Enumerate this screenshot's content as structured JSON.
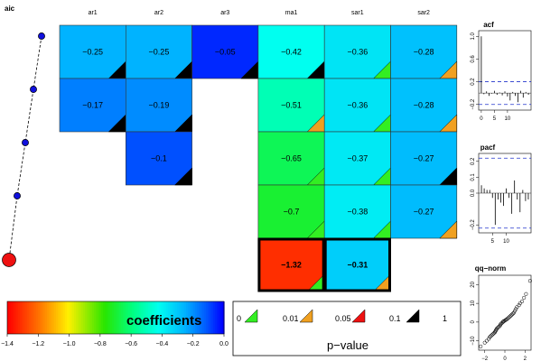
{
  "chart_data": [
    {
      "type": "heatmap",
      "title": "",
      "columns": [
        "ar1",
        "ar2",
        "ar3",
        "ma1",
        "sar1",
        "sar2"
      ],
      "rows": [
        {
          "cells": [
            {
              "col": "ar1",
              "value": -0.25,
              "pvalue_class": "1",
              "label": "−0.25"
            },
            {
              "col": "ar2",
              "value": -0.25,
              "pvalue_class": "1",
              "label": "−0.25"
            },
            {
              "col": "ar3",
              "value": -0.05,
              "pvalue_class": "1",
              "label": "−0.05"
            },
            {
              "col": "ma1",
              "value": -0.42,
              "pvalue_class": "1",
              "label": "−0.42"
            },
            {
              "col": "sar1",
              "value": -0.36,
              "pvalue_class": "0.01",
              "label": "−0.36"
            },
            {
              "col": "sar2",
              "value": -0.28,
              "pvalue_class": "0.05",
              "label": "−0.28"
            }
          ]
        },
        {
          "cells": [
            {
              "col": "ar1",
              "value": -0.17,
              "pvalue_class": "1",
              "label": "−0.17"
            },
            {
              "col": "ar2",
              "value": -0.19,
              "pvalue_class": "1",
              "label": "−0.19"
            },
            {
              "col": "ma1",
              "value": -0.51,
              "pvalue_class": "0.05",
              "label": "−0.51"
            },
            {
              "col": "sar1",
              "value": -0.36,
              "pvalue_class": "0.01",
              "label": "−0.36"
            },
            {
              "col": "sar2",
              "value": -0.28,
              "pvalue_class": "0.05",
              "label": "−0.28"
            }
          ]
        },
        {
          "cells": [
            {
              "col": "ar2",
              "value": -0.1,
              "pvalue_class": "1",
              "label": "−0.1"
            },
            {
              "col": "ma1",
              "value": -0.65,
              "pvalue_class": "0.01",
              "label": "−0.65"
            },
            {
              "col": "sar1",
              "value": -0.37,
              "pvalue_class": "0.01",
              "label": "−0.37"
            },
            {
              "col": "sar2",
              "value": -0.27,
              "pvalue_class": "1",
              "label": "−0.27"
            }
          ]
        },
        {
          "cells": [
            {
              "col": "ma1",
              "value": -0.7,
              "pvalue_class": "0.01",
              "label": "−0.7"
            },
            {
              "col": "sar1",
              "value": -0.38,
              "pvalue_class": "0.01",
              "label": "−0.38"
            },
            {
              "col": "sar2",
              "value": -0.27,
              "pvalue_class": "0.05",
              "label": "−0.27"
            }
          ]
        },
        {
          "cells": [
            {
              "col": "ma1",
              "value": -1.32,
              "pvalue_class": "0.01",
              "label": "−1.32",
              "selected": true
            },
            {
              "col": "sar1",
              "value": -0.31,
              "pvalue_class": "0.05",
              "label": "−0.31",
              "selected": true
            }
          ]
        }
      ],
      "pvalue_colors": {
        "0.01": "#33ee22",
        "0.05": "#f0a020",
        "0.1": "#ee1111",
        "1": "#000000"
      }
    },
    {
      "type": "line",
      "title": "aic",
      "series": [
        {
          "values": [
            5,
            4,
            3,
            2,
            1
          ],
          "highlight_index": 4
        }
      ]
    },
    {
      "type": "colorbar",
      "title": "coefficients",
      "ticks": [
        "−1.4",
        "−1.2",
        "−1.0",
        "−0.8",
        "−0.6",
        "−0.4",
        "−0.2",
        "0.0"
      ],
      "range": [
        -1.4,
        0
      ]
    },
    {
      "type": "legend",
      "title": "p−value",
      "labels": [
        "0",
        "0.01",
        "0.05",
        "0.1",
        "1"
      ]
    },
    {
      "type": "bar",
      "title": "acf",
      "yticks": [
        "−0.2",
        "0.2",
        "0.6",
        "1.0"
      ],
      "xticks": [
        "0",
        "5",
        "10"
      ],
      "ylim": [
        -0.3,
        1.1
      ],
      "xlim": [
        -1,
        19
      ],
      "conf": 0.2,
      "x": [
        0,
        1,
        2,
        3,
        4,
        5,
        6,
        7,
        8,
        9,
        10,
        11,
        12,
        13,
        14,
        15,
        16,
        17,
        18
      ],
      "values": [
        1.0,
        -0.02,
        0.03,
        -0.05,
        -0.01,
        0.04,
        -0.03,
        0.01,
        -0.04,
        0.03,
        -0.06,
        -0.13,
        0.02,
        -0.05,
        -0.16,
        0.04,
        -0.08,
        0.02,
        -0.03
      ]
    },
    {
      "type": "bar",
      "title": "pacf",
      "yticks": [
        "−0.2",
        "0.0",
        "0.1",
        "0.2"
      ],
      "xticks": [
        "5",
        "10"
      ],
      "ylim": [
        -0.25,
        0.25
      ],
      "xlim": [
        0,
        19
      ],
      "conf": 0.22,
      "x": [
        1,
        2,
        3,
        4,
        5,
        6,
        7,
        8,
        9,
        10,
        11,
        12,
        13,
        14,
        15,
        16,
        17,
        18
      ],
      "values": [
        0.05,
        0.03,
        0.02,
        0.02,
        -0.03,
        -0.2,
        -0.04,
        -0.06,
        -0.08,
        0.03,
        -0.03,
        -0.13,
        0.08,
        -0.04,
        -0.12,
        0.02,
        -0.05,
        -0.04
      ]
    },
    {
      "type": "scatter",
      "title": "qq−norm",
      "xticks": [
        "−2",
        "0",
        "2"
      ],
      "yticks": [
        "−10",
        "0",
        "10",
        "20"
      ],
      "xlim": [
        -2.6,
        2.6
      ],
      "ylim": [
        -15,
        25
      ],
      "points": [
        [
          -2.4,
          -13
        ],
        [
          -2.0,
          -11
        ],
        [
          -1.8,
          -10
        ],
        [
          -1.6,
          -9
        ],
        [
          -1.5,
          -8
        ],
        [
          -1.4,
          -7.5
        ],
        [
          -1.3,
          -7
        ],
        [
          -1.2,
          -6.5
        ],
        [
          -1.1,
          -6
        ],
        [
          -1.0,
          -5.5
        ],
        [
          -0.95,
          -5
        ],
        [
          -0.9,
          -4.5
        ],
        [
          -0.85,
          -4
        ],
        [
          -0.8,
          -3.5
        ],
        [
          -0.7,
          -3
        ],
        [
          -0.6,
          -2.5
        ],
        [
          -0.5,
          -2
        ],
        [
          -0.45,
          -1.5
        ],
        [
          -0.4,
          -1
        ],
        [
          -0.3,
          -0.5
        ],
        [
          -0.2,
          0
        ],
        [
          -0.15,
          0.3
        ],
        [
          -0.1,
          0.5
        ],
        [
          0,
          0.8
        ],
        [
          0.1,
          1.2
        ],
        [
          0.2,
          1.5
        ],
        [
          0.3,
          2
        ],
        [
          0.4,
          2.5
        ],
        [
          0.5,
          3
        ],
        [
          0.6,
          3.5
        ],
        [
          0.7,
          4
        ],
        [
          0.8,
          4.5
        ],
        [
          0.9,
          5
        ],
        [
          1.0,
          6
        ],
        [
          1.1,
          7
        ],
        [
          1.2,
          8
        ],
        [
          1.4,
          9
        ],
        [
          1.5,
          10
        ],
        [
          1.7,
          11
        ],
        [
          1.9,
          13
        ],
        [
          2.1,
          15
        ],
        [
          2.5,
          22
        ]
      ]
    }
  ]
}
